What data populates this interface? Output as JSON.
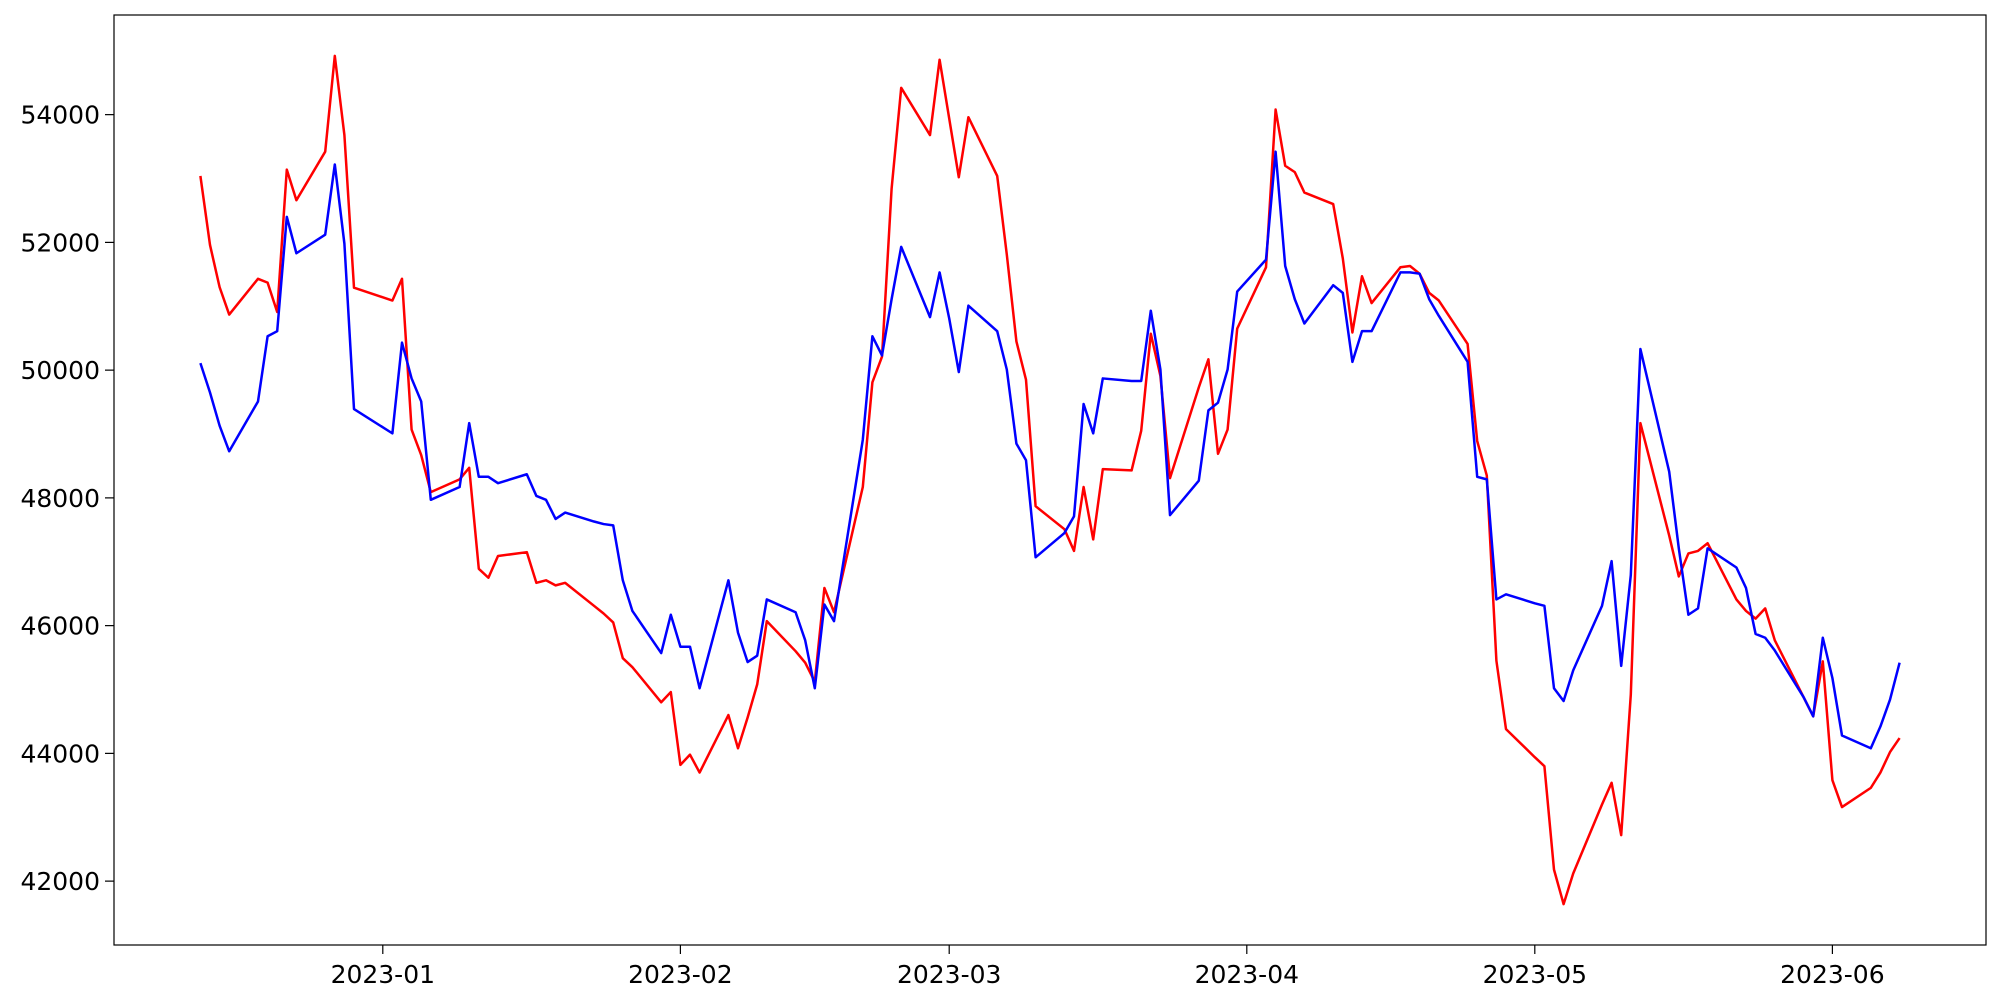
{
  "chart_data": {
    "type": "line",
    "x": [
      "2022-12-13",
      "2022-12-14",
      "2022-12-15",
      "2022-12-16",
      "2022-12-19",
      "2022-12-20",
      "2022-12-21",
      "2022-12-22",
      "2022-12-23",
      "2022-12-26",
      "2022-12-27",
      "2022-12-28",
      "2022-12-29",
      "2023-01-02",
      "2023-01-03",
      "2023-01-04",
      "2023-01-05",
      "2023-01-06",
      "2023-01-09",
      "2023-01-10",
      "2023-01-11",
      "2023-01-12",
      "2023-01-13",
      "2023-01-16",
      "2023-01-17",
      "2023-01-18",
      "2023-01-19",
      "2023-01-20",
      "2023-01-23",
      "2023-01-24",
      "2023-01-25",
      "2023-01-26",
      "2023-01-27",
      "2023-01-30",
      "2023-01-31",
      "2023-02-01",
      "2023-02-02",
      "2023-02-03",
      "2023-02-06",
      "2023-02-07",
      "2023-02-08",
      "2023-02-09",
      "2023-02-10",
      "2023-02-13",
      "2023-02-14",
      "2023-02-15",
      "2023-02-16",
      "2023-02-17",
      "2023-02-20",
      "2023-02-21",
      "2023-02-22",
      "2023-02-23",
      "2023-02-24",
      "2023-02-27",
      "2023-02-28",
      "2023-03-01",
      "2023-03-02",
      "2023-03-03",
      "2023-03-06",
      "2023-03-07",
      "2023-03-08",
      "2023-03-09",
      "2023-03-10",
      "2023-03-13",
      "2023-03-14",
      "2023-03-15",
      "2023-03-16",
      "2023-03-17",
      "2023-03-20",
      "2023-03-21",
      "2023-03-22",
      "2023-03-23",
      "2023-03-24",
      "2023-03-27",
      "2023-03-28",
      "2023-03-29",
      "2023-03-30",
      "2023-03-31",
      "2023-04-03",
      "2023-04-04",
      "2023-04-05",
      "2023-04-06",
      "2023-04-07",
      "2023-04-10",
      "2023-04-11",
      "2023-04-12",
      "2023-04-13",
      "2023-04-14",
      "2023-04-17",
      "2023-04-18",
      "2023-04-19",
      "2023-04-20",
      "2023-04-21",
      "2023-04-24",
      "2023-04-25",
      "2023-04-26",
      "2023-04-27",
      "2023-04-28",
      "2023-05-01",
      "2023-05-02",
      "2023-05-03",
      "2023-05-04",
      "2023-05-05",
      "2023-05-08",
      "2023-05-09",
      "2023-05-10",
      "2023-05-11",
      "2023-05-12",
      "2023-05-15",
      "2023-05-16",
      "2023-05-17",
      "2023-05-18",
      "2023-05-19",
      "2023-05-22",
      "2023-05-23",
      "2023-05-24",
      "2023-05-25",
      "2023-05-26",
      "2023-05-29",
      "2023-05-30",
      "2023-05-31",
      "2023-06-01",
      "2023-06-02",
      "2023-06-05",
      "2023-06-06",
      "2023-06-07",
      "2023-06-08"
    ],
    "series": [
      {
        "color": "#ff0000",
        "values": [
          53040,
          51960,
          51300,
          50870,
          51430,
          51370,
          50910,
          53140,
          52660,
          53420,
          54920,
          53680,
          51290,
          51090,
          51430,
          49070,
          48670,
          48090,
          48290,
          48470,
          46890,
          46750,
          47090,
          47150,
          46670,
          46710,
          46630,
          46670,
          46310,
          46190,
          46050,
          45490,
          45350,
          44800,
          44960,
          43820,
          43980,
          43700,
          44600,
          44080,
          44560,
          45080,
          46070,
          45600,
          45420,
          45120,
          46590,
          46210,
          48170,
          49810,
          50210,
          52840,
          54420,
          53680,
          54860,
          53940,
          53020,
          53960,
          53040,
          51810,
          50450,
          49850,
          47870,
          47510,
          47170,
          48170,
          47350,
          48450,
          48430,
          49050,
          50570,
          49910,
          48310,
          49730,
          50170,
          48690,
          49070,
          50650,
          51610,
          54080,
          53200,
          53100,
          52780,
          52600,
          51750,
          50590,
          51470,
          51050,
          51610,
          51630,
          51510,
          51210,
          51090,
          50410,
          48890,
          48350,
          45450,
          44380,
          43940,
          43800,
          42180,
          41640,
          42120,
          43200,
          43540,
          42720,
          44920,
          49170,
          47410,
          46770,
          47130,
          47170,
          47290,
          46410,
          46230,
          46110,
          46270,
          45770,
          44880,
          44580,
          45440,
          43580,
          43160,
          43460,
          43700,
          44020,
          44240
        ]
      },
      {
        "color": "#0000ff",
        "values": [
          50110,
          49650,
          49130,
          48730,
          49510,
          50530,
          50610,
          52400,
          51830,
          52120,
          53220,
          51980,
          49390,
          49010,
          50430,
          49870,
          49510,
          47970,
          48170,
          49170,
          48330,
          48330,
          48230,
          48370,
          48030,
          47970,
          47670,
          47770,
          47630,
          47590,
          47570,
          46710,
          46230,
          45570,
          46170,
          45670,
          45670,
          45020,
          46710,
          45890,
          45430,
          45530,
          46410,
          46210,
          45770,
          45020,
          46330,
          46070,
          48910,
          50530,
          50230,
          51110,
          51930,
          50830,
          51530,
          50810,
          49970,
          51010,
          50610,
          50010,
          48850,
          48590,
          47070,
          47450,
          47710,
          49470,
          49010,
          49870,
          49830,
          49830,
          50930,
          50010,
          47730,
          48270,
          49370,
          49490,
          50010,
          51230,
          51730,
          53420,
          51630,
          51110,
          50730,
          51330,
          51210,
          50130,
          50610,
          50610,
          51530,
          51530,
          51510,
          51110,
          50850,
          50130,
          48330,
          48290,
          46410,
          46490,
          46350,
          46310,
          45020,
          44820,
          45300,
          46310,
          47010,
          45370,
          46790,
          50330,
          48410,
          47210,
          46170,
          46270,
          47210,
          46910,
          46590,
          45870,
          45810,
          45610,
          44880,
          44580,
          45810,
          45180,
          44280,
          44080,
          44420,
          44840,
          45420
        ]
      }
    ],
    "xlim": [
      "2022-12-04",
      "2023-06-17"
    ],
    "xticks": [
      {
        "value": "2023-01-01",
        "label": "2023-01"
      },
      {
        "value": "2023-02-01",
        "label": "2023-02"
      },
      {
        "value": "2023-03-01",
        "label": "2023-03"
      },
      {
        "value": "2023-04-01",
        "label": "2023-04"
      },
      {
        "value": "2023-05-01",
        "label": "2023-05"
      },
      {
        "value": "2023-06-01",
        "label": "2023-06"
      }
    ],
    "ylim": [
      41000,
      55560
    ],
    "yticks": [
      42000,
      44000,
      46000,
      48000,
      50000,
      52000,
      54000
    ],
    "grid": false
  }
}
